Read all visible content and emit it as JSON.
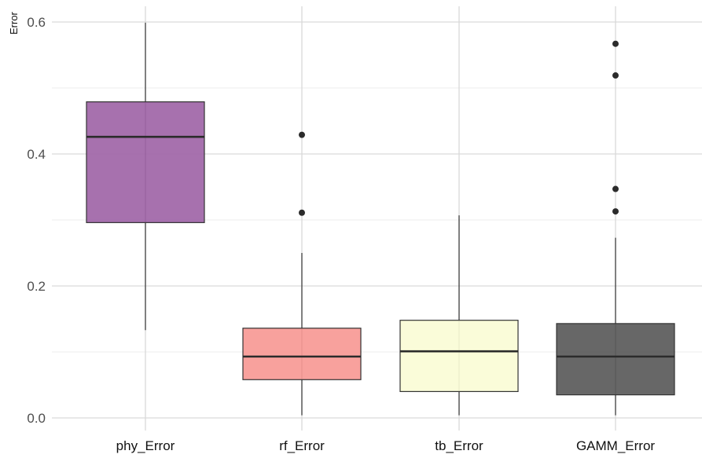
{
  "chart_data": {
    "type": "boxplot",
    "title": "",
    "xlabel": "",
    "ylabel": "Error",
    "ylim": [
      0,
      0.6
    ],
    "yticks": [
      0.0,
      0.2,
      0.4,
      0.6
    ],
    "ytick_labels": [
      "0.0",
      "0.2",
      "0.4",
      "0.6"
    ],
    "grid": true,
    "legend": "none",
    "categories": [
      "phy_Error",
      "rf_Error",
      "tb_Error",
      "GAMM_Error"
    ],
    "boxes": [
      {
        "category": "phy_Error",
        "whisker_low": 0.133,
        "q1": 0.296,
        "median": 0.426,
        "q3": 0.479,
        "whisker_high": 0.599,
        "outliers": [],
        "color": "#a066a8"
      },
      {
        "category": "rf_Error",
        "whisker_low": 0.004,
        "q1": 0.058,
        "median": 0.093,
        "q3": 0.136,
        "whisker_high": 0.25,
        "outliers": [
          0.311,
          0.429
        ],
        "color": "#f79a96"
      },
      {
        "category": "tb_Error",
        "whisker_low": 0.004,
        "q1": 0.04,
        "median": 0.101,
        "q3": 0.148,
        "whisker_high": 0.307,
        "outliers": [],
        "color": "#fafcd6"
      },
      {
        "category": "GAMM_Error",
        "whisker_low": 0.004,
        "q1": 0.035,
        "median": 0.093,
        "q3": 0.143,
        "whisker_high": 0.273,
        "outliers": [
          0.313,
          0.347,
          0.519,
          0.567
        ],
        "color": "#5b5b5b"
      }
    ]
  }
}
